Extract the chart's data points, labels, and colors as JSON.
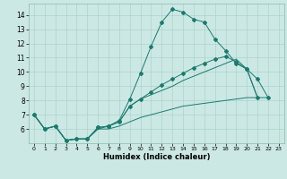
{
  "xlabel": "Humidex (Indice chaleur)",
  "bg_color": "#cce8e4",
  "grid_color": "#aad4cc",
  "line_color": "#1a7a6e",
  "xlim": [
    -0.5,
    23.5
  ],
  "ylim": [
    5,
    14.8
  ],
  "yticks": [
    6,
    7,
    8,
    9,
    10,
    11,
    12,
    13,
    14
  ],
  "xticks": [
    0,
    1,
    2,
    3,
    4,
    5,
    6,
    7,
    8,
    9,
    10,
    11,
    12,
    13,
    14,
    15,
    16,
    17,
    18,
    19,
    20,
    21,
    22,
    23
  ],
  "series": [
    {
      "x": [
        0,
        1,
        2,
        3,
        4,
        5,
        6,
        7,
        8,
        9,
        10,
        11,
        12,
        13,
        14,
        15,
        16,
        17,
        18,
        19,
        20,
        21,
        22
      ],
      "y": [
        7.0,
        6.0,
        6.2,
        5.2,
        5.3,
        5.3,
        6.1,
        6.2,
        6.6,
        8.1,
        9.9,
        11.8,
        13.5,
        14.4,
        14.2,
        13.7,
        13.5,
        12.3,
        11.5,
        10.6,
        10.2,
        9.5,
        8.2
      ],
      "marker": "D",
      "markersize": 2.0
    },
    {
      "x": [
        0,
        1,
        2,
        3,
        4,
        5,
        6,
        7,
        8,
        9,
        10,
        11,
        12,
        13,
        14,
        15,
        16,
        17,
        18,
        19,
        20,
        21
      ],
      "y": [
        7.0,
        6.0,
        6.2,
        5.2,
        5.3,
        5.3,
        6.1,
        6.2,
        6.5,
        7.6,
        8.1,
        8.6,
        9.1,
        9.5,
        9.9,
        10.3,
        10.6,
        10.9,
        11.1,
        10.7,
        10.2,
        8.2
      ],
      "marker": "D",
      "markersize": 2.0
    },
    {
      "x": [
        0,
        1,
        2,
        3,
        4,
        5,
        6,
        7,
        8,
        9,
        10,
        11,
        12,
        13,
        14,
        15,
        16,
        17,
        18,
        19,
        20,
        21
      ],
      "y": [
        7.0,
        6.0,
        6.2,
        5.2,
        5.3,
        5.3,
        6.0,
        6.2,
        6.5,
        7.6,
        8.1,
        8.4,
        8.7,
        9.0,
        9.4,
        9.7,
        10.0,
        10.3,
        10.6,
        10.9,
        10.2,
        8.2
      ],
      "marker": null,
      "markersize": 0
    },
    {
      "x": [
        0,
        1,
        2,
        3,
        4,
        5,
        6,
        7,
        8,
        9,
        10,
        11,
        12,
        13,
        14,
        15,
        16,
        17,
        18,
        19,
        20,
        21,
        22
      ],
      "y": [
        7.0,
        6.0,
        6.2,
        5.2,
        5.3,
        5.3,
        6.0,
        6.0,
        6.2,
        6.5,
        6.8,
        7.0,
        7.2,
        7.4,
        7.6,
        7.7,
        7.8,
        7.9,
        8.0,
        8.1,
        8.2,
        8.2,
        8.2
      ],
      "marker": null,
      "markersize": 0
    }
  ]
}
